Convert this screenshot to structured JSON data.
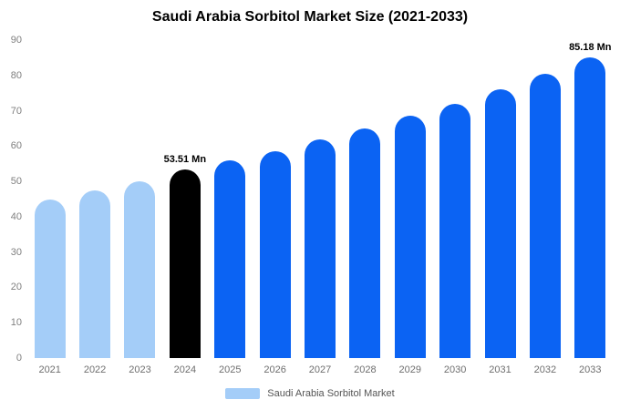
{
  "chart_data": {
    "type": "bar",
    "title": "Saudi Arabia Sorbitol Market Size (2021-2033)",
    "categories": [
      "2021",
      "2022",
      "2023",
      "2024",
      "2025",
      "2026",
      "2027",
      "2028",
      "2029",
      "2030",
      "2031",
      "2032",
      "2033"
    ],
    "values": [
      45,
      47.5,
      50,
      53.51,
      56,
      58.5,
      62,
      65,
      68.5,
      72,
      76,
      80.5,
      85.18
    ],
    "bar_colors": [
      "#A4CDF8",
      "#A4CDF8",
      "#A4CDF8",
      "#000000",
      "#0B63F3",
      "#0B63F3",
      "#0B63F3",
      "#0B63F3",
      "#0B63F3",
      "#0B63F3",
      "#0B63F3",
      "#0B63F3",
      "#0B63F3"
    ],
    "ylim": [
      0,
      90
    ],
    "yticks": [
      0,
      10,
      20,
      30,
      40,
      50,
      60,
      70,
      80,
      90
    ],
    "grid": false,
    "annotations": [
      {
        "category": "2024",
        "text": "53.51 Mn"
      },
      {
        "category": "2033",
        "text": "85.18 Mn"
      }
    ],
    "legend": {
      "label": "Saudi Arabia Sorbitol Market",
      "swatch_color": "#A4CDF8"
    },
    "colors": {
      "historical": "#A4CDF8",
      "base_year": "#000000",
      "forecast": "#0B63F3"
    }
  }
}
